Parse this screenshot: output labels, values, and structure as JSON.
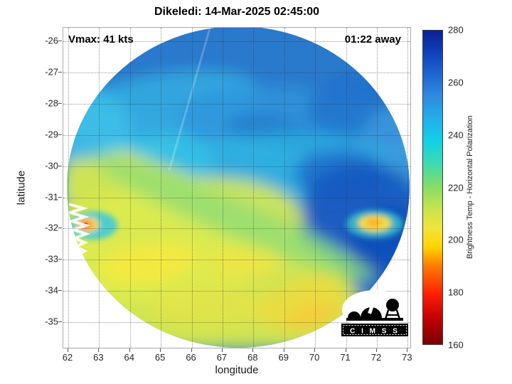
{
  "title": "Dikeledi: 14-Mar-2025 02:45:00",
  "annotations": {
    "vmax_label": "Vmax: 41 kts",
    "time_away_label": "01:22 away"
  },
  "axes": {
    "xlabel": "longitude",
    "ylabel": "latitude",
    "xticks": [
      62,
      63,
      64,
      65,
      66,
      67,
      68,
      69,
      70,
      71,
      72,
      73
    ],
    "yticks": [
      -26,
      -27,
      -28,
      -29,
      -30,
      -31,
      -32,
      -33,
      -34,
      -35
    ]
  },
  "colorbar": {
    "label": "Brightness Temp - Horizontal Polarization",
    "min": 160,
    "max": 280,
    "ticks": [
      160,
      180,
      200,
      220,
      240,
      260,
      280
    ],
    "stops": [
      {
        "p": 0.0,
        "c": "#7a0000"
      },
      {
        "p": 0.08,
        "c": "#c00000"
      },
      {
        "p": 0.16,
        "c": "#ff1e00"
      },
      {
        "p": 0.25,
        "c": "#ff7c00"
      },
      {
        "p": 0.31,
        "c": "#ffd400"
      },
      {
        "p": 0.37,
        "c": "#f2e43c"
      },
      {
        "p": 0.43,
        "c": "#c8e44c"
      },
      {
        "p": 0.5,
        "c": "#8adc64"
      },
      {
        "p": 0.57,
        "c": "#40dcaa"
      },
      {
        "p": 0.65,
        "c": "#10d0e8"
      },
      {
        "p": 0.71,
        "c": "#22b2ec"
      },
      {
        "p": 0.79,
        "c": "#2e8ce0"
      },
      {
        "p": 0.875,
        "c": "#1b5ecf"
      },
      {
        "p": 0.94,
        "c": "#0d3cb4"
      },
      {
        "p": 1.0,
        "c": "#0a2096"
      }
    ]
  },
  "logo": {
    "text": "C I M S S"
  },
  "chart_data": {
    "type": "heatmap",
    "title": "Dikeledi: 14-Mar-2025 02:45:00",
    "xlabel": "longitude",
    "ylabel": "latitude",
    "xlim": [
      61.84,
      73.13
    ],
    "ylim": [
      -35.86,
      -25.57
    ],
    "grid": true,
    "value_label": "Brightness Temp - Horizontal Polarization",
    "value_range": [
      160,
      280
    ],
    "colormap": "reversed jet (low temps = dark red/red/orange/yellow, high temps = cyan/blue/dark blue)",
    "swath": {
      "shape": "circular microwave sensor footprint",
      "center_lon": 67.5,
      "center_lat": -30.6,
      "radius_deg": 5.5
    },
    "regions": [
      {
        "area": "northern half of swath (lat -25.6 to -30)",
        "brightness_temp_K": [
          245,
          265
        ],
        "appearance": "blue with mottled cyan patches"
      },
      {
        "area": "southwest sector (lat -30 to -35.5, lon 62 to 70.5)",
        "brightness_temp_K": [
          200,
          220
        ],
        "appearance": "yellow-green with yellow patches"
      },
      {
        "area": "eastern / southeastern edge (lon 70 to 73, lat -29.5 to -34)",
        "brightness_temp_K": [
          260,
          275
        ],
        "appearance": "dark blue"
      },
      {
        "area": "speck near lon 62.5, lat -31.8",
        "brightness_temp_K": [
          180,
          195
        ],
        "appearance": "orange-red spot ringed by yellow and cyan"
      },
      {
        "area": "patch near lon 71.9, lat -31.8",
        "brightness_temp_K": [
          200,
          210
        ],
        "appearance": "yellow-orange patch in blue field"
      },
      {
        "area": "jagged swath edge, left side lat -30 to -33",
        "brightness_temp_K": null,
        "appearance": "sawtooth no-data boundary"
      }
    ],
    "annotations": [
      "Vmax: 41 kts",
      "01:22 away"
    ]
  }
}
